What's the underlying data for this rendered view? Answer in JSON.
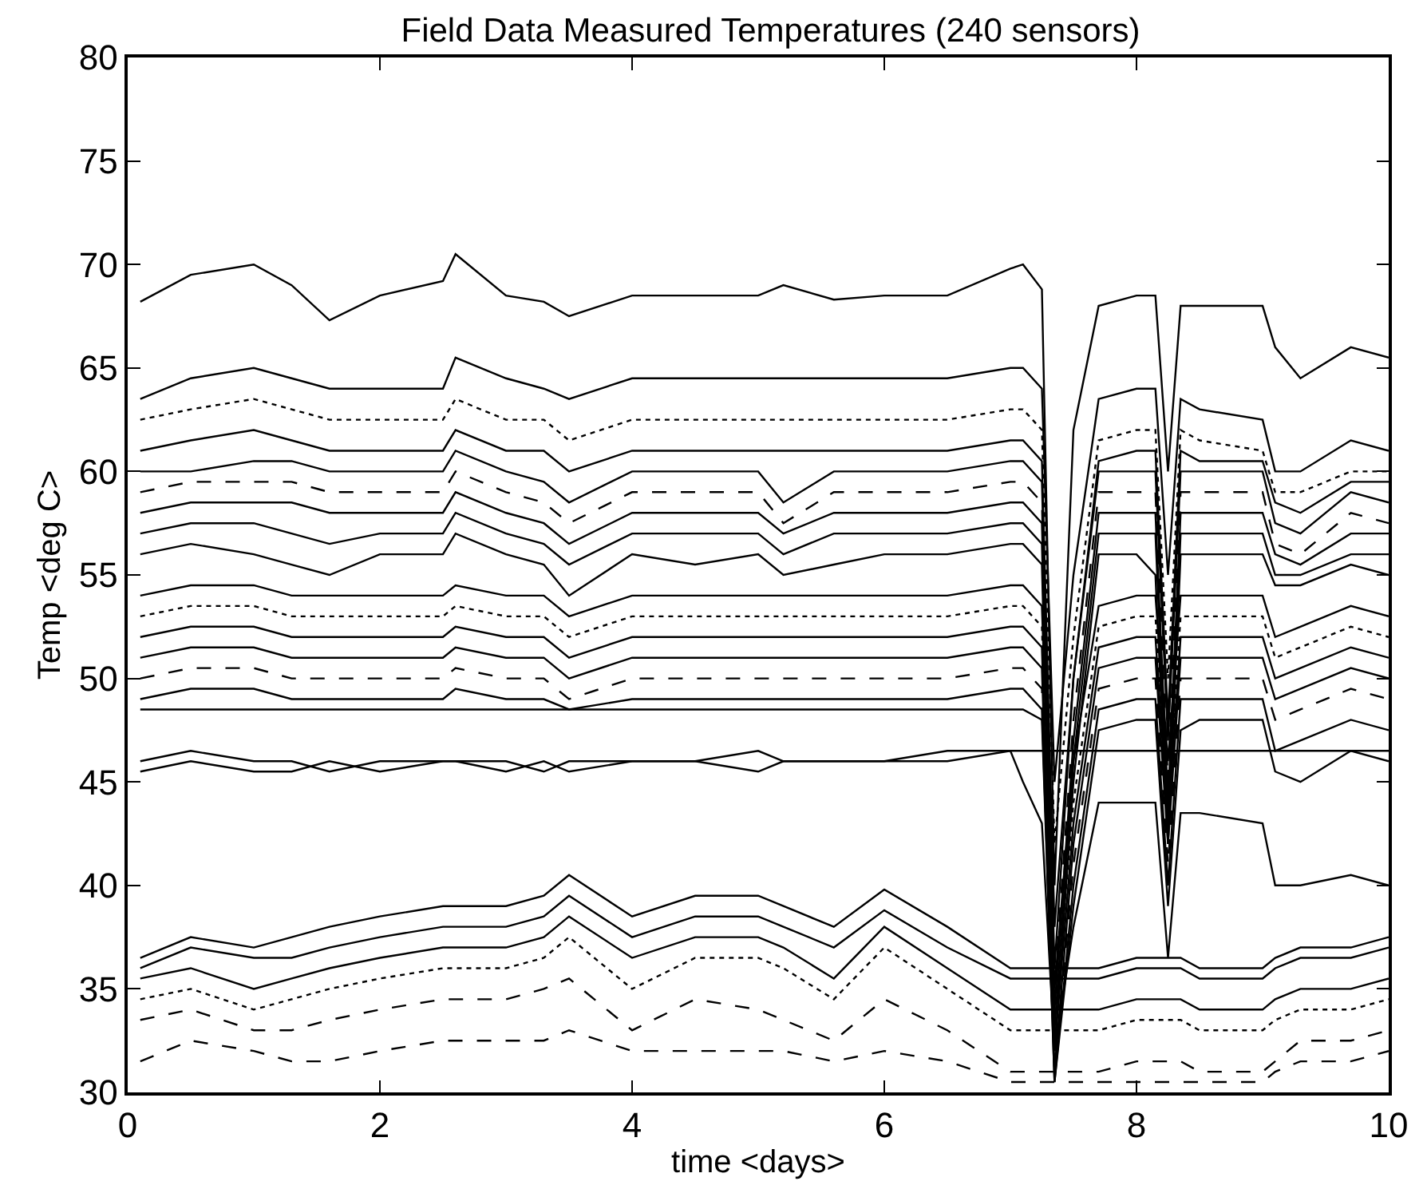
{
  "chart_data": {
    "type": "line",
    "title": "Field Data Measured Temperatures (240 sensors)",
    "xlabel": "time <days>",
    "ylabel": "Temp <deg C>",
    "x": [
      0.1,
      0.5,
      1,
      1.3,
      1.6,
      2,
      2.5,
      2.6,
      3,
      3.3,
      3.5,
      4,
      4.5,
      5,
      5.2,
      5.6,
      6,
      6.5,
      7,
      7.1,
      7.25,
      7.35,
      7.5,
      7.7,
      8,
      8.15,
      8.25,
      8.35,
      8.5,
      9,
      9.1,
      9.3,
      9.7,
      10
    ],
    "xlim": [
      0,
      10
    ],
    "xticks": [
      0,
      2,
      4,
      6,
      8,
      10
    ],
    "ylim": [
      30,
      80
    ],
    "yticks": [
      30,
      35,
      40,
      45,
      50,
      55,
      60,
      65,
      70,
      75,
      80
    ],
    "marker": "none",
    "series": [
      {
        "color": "#000000",
        "line_style": "solid",
        "values": [
          68.2,
          69.5,
          70,
          69,
          67.3,
          68.5,
          69.2,
          70.5,
          68.5,
          68.2,
          67.5,
          68.5,
          68.5,
          68.5,
          69,
          68.3,
          68.5,
          68.5,
          69.8,
          70,
          68.8,
          40,
          62,
          68,
          68.5,
          68.5,
          60,
          68,
          68,
          68,
          66,
          64.5,
          66,
          65.5
        ]
      },
      {
        "color": "#000000",
        "line_style": "solid",
        "values": [
          63.5,
          64.5,
          65,
          64.5,
          64,
          64,
          64,
          65.5,
          64.5,
          64,
          63.5,
          64.5,
          64.5,
          64.5,
          64.5,
          64.5,
          64.5,
          64.5,
          65,
          65,
          64,
          45,
          55,
          63.5,
          64,
          64,
          55,
          63.5,
          63,
          62.5,
          60,
          60,
          61.5,
          61
        ]
      },
      {
        "color": "#000000",
        "line_style": "dotted",
        "values": [
          62.5,
          63,
          63.5,
          63,
          62.5,
          62.5,
          62.5,
          63.5,
          62.5,
          62.5,
          61.5,
          62.5,
          62.5,
          62.5,
          62.5,
          62.5,
          62.5,
          62.5,
          63,
          63,
          62,
          42,
          52,
          61.5,
          62,
          62,
          50,
          62,
          61.5,
          61,
          59,
          59,
          60,
          60
        ]
      },
      {
        "color": "#000000",
        "line_style": "solid",
        "values": [
          61,
          61.5,
          62,
          61.5,
          61,
          61,
          61,
          62,
          61,
          61,
          60,
          61,
          61,
          61,
          61,
          61,
          61,
          61,
          61.5,
          61.5,
          60.5,
          38,
          50,
          60.5,
          61,
          61,
          48,
          61,
          60.5,
          60.5,
          58.5,
          58,
          59.5,
          59.5
        ]
      },
      {
        "color": "#000000",
        "line_style": "solid",
        "values": [
          60,
          60,
          60.5,
          60.5,
          60,
          60,
          60,
          61,
          60,
          59.5,
          58.5,
          60,
          60,
          60,
          58.5,
          60,
          60,
          60,
          60.5,
          60.5,
          59.5,
          36,
          50,
          60,
          60,
          60,
          47,
          60,
          60,
          60,
          57.5,
          57,
          59,
          58.5
        ]
      },
      {
        "color": "#000000",
        "line_style": "dashed",
        "values": [
          59,
          59.5,
          59.5,
          59.5,
          59,
          59,
          59,
          60,
          59,
          58.5,
          57.5,
          59,
          59,
          59,
          57.5,
          59,
          59,
          59,
          59.5,
          59.5,
          58.5,
          35,
          48,
          59,
          59,
          59,
          45,
          59,
          59,
          59,
          56.5,
          56,
          58,
          57.5
        ]
      },
      {
        "color": "#000000",
        "line_style": "solid",
        "values": [
          58,
          58.5,
          58.5,
          58.5,
          58,
          58,
          58,
          59,
          58,
          57.5,
          56.5,
          58,
          58,
          58,
          57,
          58,
          58,
          58,
          58.5,
          58.5,
          57.5,
          34,
          47,
          58,
          58,
          58,
          44,
          58,
          58,
          58,
          56,
          55.5,
          57,
          57
        ]
      },
      {
        "color": "#000000",
        "line_style": "solid",
        "values": [
          57,
          57.5,
          57.5,
          57,
          56.5,
          57,
          57,
          58,
          57,
          56.5,
          55.5,
          57,
          57,
          57,
          56,
          57,
          57,
          57,
          57.5,
          57.5,
          56.5,
          33,
          46,
          57,
          57,
          57,
          43,
          57,
          57,
          57,
          55,
          55,
          56,
          56
        ]
      },
      {
        "color": "#000000",
        "line_style": "solid",
        "values": [
          56,
          56.5,
          56,
          55.5,
          55,
          56,
          56,
          57,
          56,
          55.5,
          54,
          56,
          55.5,
          56,
          55,
          55.5,
          56,
          56,
          56.5,
          56.5,
          55.5,
          32,
          45,
          56,
          56,
          55,
          42,
          56,
          56,
          56,
          54.5,
          54.5,
          55.5,
          55
        ]
      },
      {
        "color": "#000000",
        "line_style": "solid",
        "values": [
          54,
          54.5,
          54.5,
          54,
          54,
          54,
          54,
          54.5,
          54,
          54,
          53,
          54,
          54,
          54,
          54,
          54,
          54,
          54,
          54.5,
          54.5,
          53.5,
          35,
          46,
          53.5,
          54,
          54,
          46,
          54,
          54,
          54,
          52,
          52.5,
          53.5,
          53
        ]
      },
      {
        "color": "#000000",
        "line_style": "dotted",
        "values": [
          53,
          53.5,
          53.5,
          53,
          53,
          53,
          53,
          53.5,
          53,
          53,
          52,
          53,
          53,
          53,
          53,
          53,
          53,
          53,
          53.5,
          53.5,
          52.5,
          33,
          44,
          52.5,
          53,
          53,
          44,
          53,
          53,
          53,
          51,
          51.5,
          52.5,
          52
        ]
      },
      {
        "color": "#000000",
        "line_style": "solid",
        "values": [
          52,
          52.5,
          52.5,
          52,
          52,
          52,
          52,
          52.5,
          52,
          52,
          51,
          52,
          52,
          52,
          52,
          52,
          52,
          52,
          52.5,
          52.5,
          51.5,
          32,
          43,
          51.5,
          52,
          52,
          43,
          52,
          52,
          52,
          50,
          50.5,
          51.5,
          51
        ]
      },
      {
        "color": "#000000",
        "line_style": "solid",
        "values": [
          51,
          51.5,
          51.5,
          51,
          51,
          51,
          51,
          51.5,
          51,
          51,
          50,
          51,
          51,
          51,
          51,
          51,
          51,
          51,
          51.5,
          51.5,
          50.5,
          31,
          42,
          50.5,
          51,
          51,
          42,
          51,
          51,
          51,
          49,
          49.5,
          50.5,
          50
        ]
      },
      {
        "color": "#000000",
        "line_style": "dashed",
        "values": [
          50,
          50.5,
          50.5,
          50,
          50,
          50,
          50,
          50.5,
          50,
          50,
          49,
          50,
          50,
          50,
          50,
          50,
          50,
          50,
          50.5,
          50.5,
          49.5,
          31,
          41,
          49.5,
          50,
          50,
          41,
          50,
          50,
          50,
          48,
          48.5,
          49.5,
          49
        ]
      },
      {
        "color": "#000000",
        "line_style": "solid",
        "values": [
          49,
          49.5,
          49.5,
          49,
          49,
          49,
          49,
          49.5,
          49,
          49,
          48.5,
          49,
          49,
          49,
          49,
          49,
          49,
          49,
          49.5,
          49.5,
          48.5,
          30.5,
          40,
          48.5,
          49,
          49,
          40,
          49,
          49,
          49,
          46.5,
          47,
          48,
          47.5
        ]
      },
      {
        "color": "#000000",
        "line_style": "solid",
        "values": [
          48.5,
          48.5,
          48.5,
          48.5,
          48.5,
          48.5,
          48.5,
          48.5,
          48.5,
          48.5,
          48.5,
          48.5,
          48.5,
          48.5,
          48.5,
          48.5,
          48.5,
          48.5,
          48.5,
          48.5,
          48,
          30.5,
          39,
          47.5,
          48,
          48,
          39,
          47.5,
          48,
          48,
          45.5,
          45,
          46.5,
          46
        ]
      },
      {
        "color": "#000000",
        "line_style": "solid",
        "values": [
          46,
          46.5,
          46,
          46,
          45.5,
          46,
          46,
          46,
          46,
          45.5,
          46,
          46,
          46,
          46.5,
          46,
          46,
          46,
          46.5,
          46.5,
          46.5,
          46.5,
          46.5,
          46.5,
          46.5,
          46.5,
          46.5,
          46.5,
          46.5,
          46.5,
          46.5,
          46.5,
          46.5,
          46.5,
          46.5
        ]
      },
      {
        "color": "#000000",
        "line_style": "solid",
        "values": [
          45.5,
          46,
          45.5,
          45.5,
          46,
          45.5,
          46,
          46,
          45.5,
          46,
          45.5,
          46,
          46,
          45.5,
          46,
          46,
          46,
          46,
          46.5,
          45,
          43,
          32,
          38,
          44,
          44,
          44,
          36.5,
          43.5,
          43.5,
          43,
          40,
          40,
          40.5,
          40
        ]
      },
      {
        "color": "#000000",
        "line_style": "solid",
        "values": [
          36.5,
          37.5,
          37,
          37.5,
          38,
          38.5,
          39,
          39,
          39,
          39.5,
          40.5,
          38.5,
          39.5,
          39.5,
          39,
          38,
          39.8,
          38,
          36,
          36,
          36,
          36,
          36,
          36,
          36.5,
          36.5,
          36.5,
          36.5,
          36,
          36,
          36.5,
          37,
          37,
          37.5
        ]
      },
      {
        "color": "#000000",
        "line_style": "solid",
        "values": [
          36,
          37,
          36.5,
          36.5,
          37,
          37.5,
          38,
          38,
          38,
          38.5,
          39.5,
          37.5,
          38.5,
          38.5,
          38,
          37,
          38.8,
          37,
          35.5,
          35.5,
          35.5,
          35.5,
          35.5,
          35.5,
          36,
          36,
          36,
          36,
          35.5,
          35.5,
          36,
          36.5,
          36.5,
          37
        ]
      },
      {
        "color": "#000000",
        "line_style": "solid",
        "values": [
          35.5,
          36,
          35,
          35.5,
          36,
          36.5,
          37,
          37,
          37,
          37.5,
          38.5,
          36.5,
          37.5,
          37.5,
          37,
          35.5,
          38,
          36,
          34,
          34,
          34,
          34,
          34,
          34,
          34.5,
          34.5,
          34.5,
          34.5,
          34,
          34,
          34.5,
          35,
          35,
          35.5
        ]
      },
      {
        "color": "#000000",
        "line_style": "dotted",
        "values": [
          34.5,
          35,
          34,
          34.5,
          35,
          35.5,
          36,
          36,
          36,
          36.5,
          37.5,
          35,
          36.5,
          36.5,
          36,
          34.5,
          37,
          35,
          33,
          33,
          33,
          33,
          33,
          33,
          33.5,
          33.5,
          33.5,
          33.5,
          33,
          33,
          33.5,
          34,
          34,
          34.5
        ]
      },
      {
        "color": "#000000",
        "line_style": "dashed",
        "values": [
          33.5,
          34,
          33,
          33,
          33.5,
          34,
          34.5,
          34.5,
          34.5,
          35,
          35.5,
          33,
          34.5,
          34,
          33.5,
          32.5,
          34.5,
          33,
          31,
          31,
          31,
          31,
          31,
          31,
          31.5,
          31.5,
          31.5,
          31.5,
          31,
          31,
          31.5,
          32.5,
          32.5,
          33
        ]
      },
      {
        "color": "#000000",
        "line_style": "dashed",
        "values": [
          31.5,
          32.5,
          32,
          31.5,
          31.5,
          32,
          32.5,
          32.5,
          32.5,
          32.5,
          33,
          32,
          32,
          32,
          32,
          31.5,
          32,
          31.5,
          30.5,
          30.5,
          30.5,
          30.5,
          30.5,
          30.5,
          30.5,
          30.5,
          30.5,
          30.5,
          30.5,
          30.5,
          31,
          31.5,
          31.5,
          32
        ]
      }
    ]
  }
}
